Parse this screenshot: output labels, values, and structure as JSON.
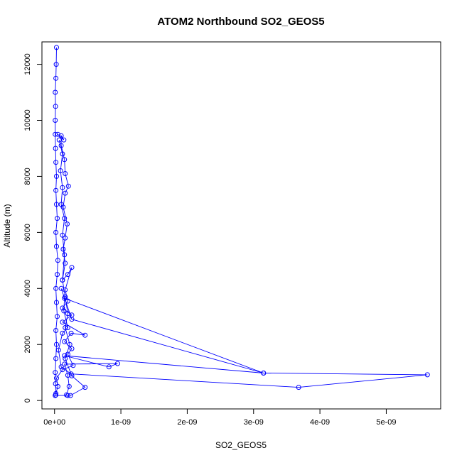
{
  "chart_data": {
    "type": "scatter",
    "title": "ATOM2 Northbound SO2_GEOS5",
    "xlabel": "SO2_GEOS5",
    "ylabel": "Altitude (m)",
    "xlim": [
      -1.9e-10,
      5.82e-09
    ],
    "ylim": [
      -300,
      12800
    ],
    "x_ticks": [
      0,
      1e-09,
      2e-09,
      3e-09,
      4e-09,
      5e-09
    ],
    "x_tick_labels": [
      "0e+00",
      "1e-09",
      "2e-09",
      "3e-09",
      "4e-09",
      "5e-09"
    ],
    "y_ticks": [
      0,
      2000,
      4000,
      6000,
      8000,
      10000,
      12000
    ],
    "y_tick_labels": [
      "0",
      "2000",
      "4000",
      "6000",
      "8000",
      "10000",
      "12000"
    ],
    "grid": false,
    "legend": "none",
    "marker": "open-circle",
    "connected": true,
    "series_color": "#0000ff",
    "series": [
      {
        "points": [
          [
            2e-11,
            200
          ],
          [
            1.5e-11,
            600
          ],
          [
            1e-11,
            1000
          ],
          [
            2e-11,
            1500
          ],
          [
            3e-11,
            2000
          ],
          [
            2e-11,
            2500
          ],
          [
            4e-11,
            3000
          ],
          [
            3e-11,
            3500
          ],
          [
            2e-11,
            4000
          ],
          [
            4e-11,
            4500
          ],
          [
            5e-11,
            5000
          ],
          [
            3e-11,
            5500
          ],
          [
            2e-11,
            6000
          ],
          [
            4e-11,
            6500
          ],
          [
            3e-11,
            7000
          ],
          [
            2e-11,
            7500
          ],
          [
            3e-11,
            8000
          ],
          [
            2e-11,
            8500
          ],
          [
            1.5e-11,
            9000
          ],
          [
            1e-11,
            9500
          ],
          [
            1e-11,
            10000
          ],
          [
            1.5e-11,
            10500
          ],
          [
            1e-11,
            11000
          ],
          [
            2e-11,
            11500
          ],
          [
            2.5e-11,
            12000
          ],
          [
            3e-11,
            12600
          ]
        ]
      },
      {
        "points": [
          [
            1.8e-10,
            200
          ],
          [
            2.2e-10,
            500
          ],
          [
            2e-10,
            900
          ],
          [
            1.5e-10,
            1300
          ],
          [
            9.5e-10,
            1320
          ],
          [
            8.2e-10,
            1200
          ],
          [
            1.5e-10,
            1600
          ],
          [
            3.15e-09,
            980
          ],
          [
            5.62e-09,
            920
          ],
          [
            3.68e-09,
            470
          ],
          [
            2.5e-10,
            950
          ],
          [
            1e-10,
            1200
          ],
          [
            6e-11,
            1800
          ],
          [
            1.2e-10,
            2400
          ],
          [
            2e-10,
            2600
          ],
          [
            1.4e-10,
            3200
          ],
          [
            1.5e-10,
            3650
          ],
          [
            3.15e-09,
            980
          ],
          [
            2.6e-10,
            2900
          ],
          [
            1e-10,
            4000
          ]
        ]
      },
      {
        "points": [
          [
            2e-11,
            250
          ],
          [
            5e-11,
            500
          ],
          [
            3e-11,
            800
          ],
          [
            1.2e-10,
            1100
          ],
          [
            2.8e-10,
            1250
          ],
          [
            2e-10,
            1650
          ],
          [
            2.6e-10,
            1850
          ],
          [
            1.5e-10,
            2100
          ],
          [
            2.5e-10,
            2400
          ],
          [
            4.6e-10,
            2330
          ],
          [
            1.2e-10,
            2800
          ],
          [
            2.6e-10,
            3050
          ],
          [
            1.2e-10,
            3300
          ],
          [
            2e-10,
            3550
          ],
          [
            1.6e-10,
            3950
          ],
          [
            2.6e-10,
            4750
          ],
          [
            2e-10,
            4500
          ],
          [
            1.2e-10,
            4300
          ],
          [
            1.6e-10,
            4900
          ],
          [
            1.3e-10,
            5400
          ],
          [
            1.6e-10,
            5800
          ],
          [
            1.9e-10,
            6300
          ],
          [
            1.3e-10,
            6900
          ],
          [
            1.6e-10,
            7400
          ],
          [
            2.1e-10,
            7650
          ],
          [
            1.6e-10,
            8100
          ],
          [
            1.5e-10,
            8600
          ],
          [
            1e-10,
            9100
          ],
          [
            1e-10,
            9450
          ],
          [
            1.4e-10,
            9300
          ],
          [
            5e-11,
            9500
          ]
        ]
      },
      {
        "points": [
          [
            1e-11,
            180
          ],
          [
            2e-10,
            180
          ],
          [
            2.4e-10,
            180
          ],
          [
            4.6e-10,
            470
          ],
          [
            2.6e-10,
            880
          ],
          [
            1.6e-10,
            1500
          ],
          [
            2.3e-10,
            2000
          ],
          [
            1.6e-10,
            2600
          ],
          [
            2e-10,
            3100
          ],
          [
            1.6e-10,
            3700
          ],
          [
            1.2e-10,
            4300
          ],
          [
            1.5e-10,
            5200
          ],
          [
            1.2e-10,
            5900
          ],
          [
            1.5e-10,
            6500
          ],
          [
            1e-10,
            7000
          ],
          [
            1.2e-10,
            7600
          ],
          [
            9e-11,
            8200
          ],
          [
            1.2e-10,
            8800
          ],
          [
            7e-11,
            9300
          ]
        ]
      }
    ]
  }
}
